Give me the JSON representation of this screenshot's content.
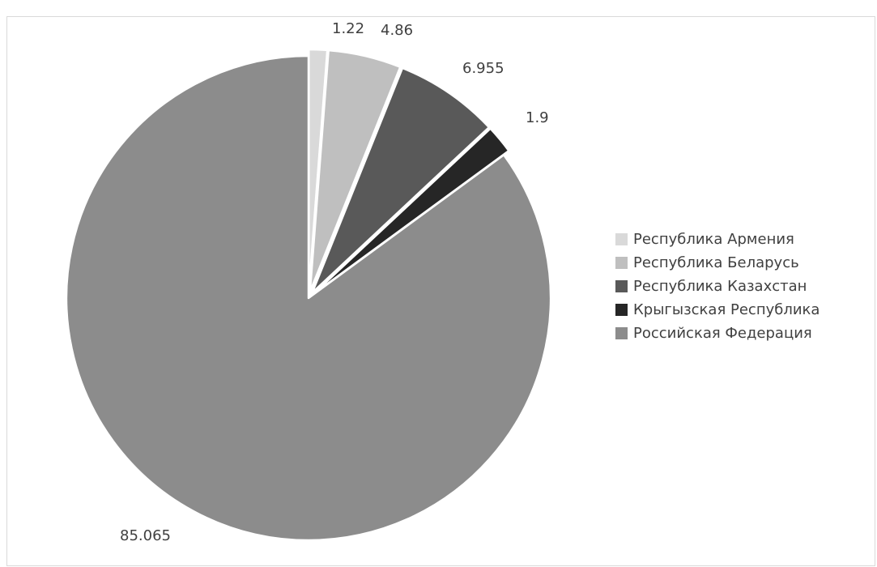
{
  "chart_data": {
    "type": "pie",
    "title": "",
    "categories": [
      "Республика Армения",
      "Республика Беларусь",
      "Республика Казахстан",
      "Крыгызская Республика",
      "Российская Федерация"
    ],
    "values": [
      1.22,
      4.86,
      6.955,
      1.9,
      85.065
    ],
    "data_labels": [
      "1.22",
      "4.86",
      "6.955",
      "1.9",
      "85.065"
    ],
    "colors": [
      "#d9d9d9",
      "#bfbfbf",
      "#595959",
      "#262626",
      "#8c8c8c"
    ],
    "exploded": [
      true,
      true,
      true,
      true,
      false
    ],
    "start_angle_deg": 0,
    "direction": "clockwise",
    "legend_position": "right"
  }
}
